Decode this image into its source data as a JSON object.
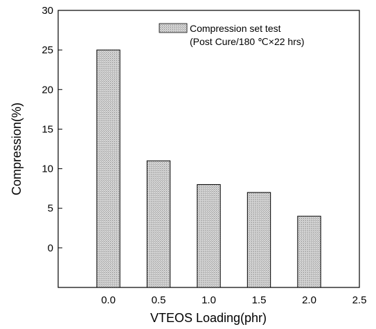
{
  "chart_data": {
    "type": "bar",
    "x": [
      0.0,
      0.5,
      1.0,
      1.5,
      2.0
    ],
    "values": [
      25,
      11,
      8,
      7,
      4
    ],
    "xlabel": "VTEOS Loading(phr)",
    "ylabel": "Compression(%)",
    "xlim": [
      -0.5,
      2.5
    ],
    "ylim": [
      -5,
      30
    ],
    "xticks": [
      "0.0",
      "0.5",
      "1.0",
      "1.5",
      "2.0",
      "2.5"
    ],
    "yticks": [
      "0",
      "5",
      "10",
      "15",
      "20",
      "25",
      "30"
    ],
    "bar_width": 0.23,
    "grid": false,
    "legend_position": "top-right",
    "legend": {
      "line1": "Compression set test",
      "line2": "(Post Cure/180 ℃×22 hrs)"
    },
    "colors": {
      "bar_fill": "#cfcfcf",
      "bar_stroke": "#000000",
      "axis": "#000000"
    }
  }
}
